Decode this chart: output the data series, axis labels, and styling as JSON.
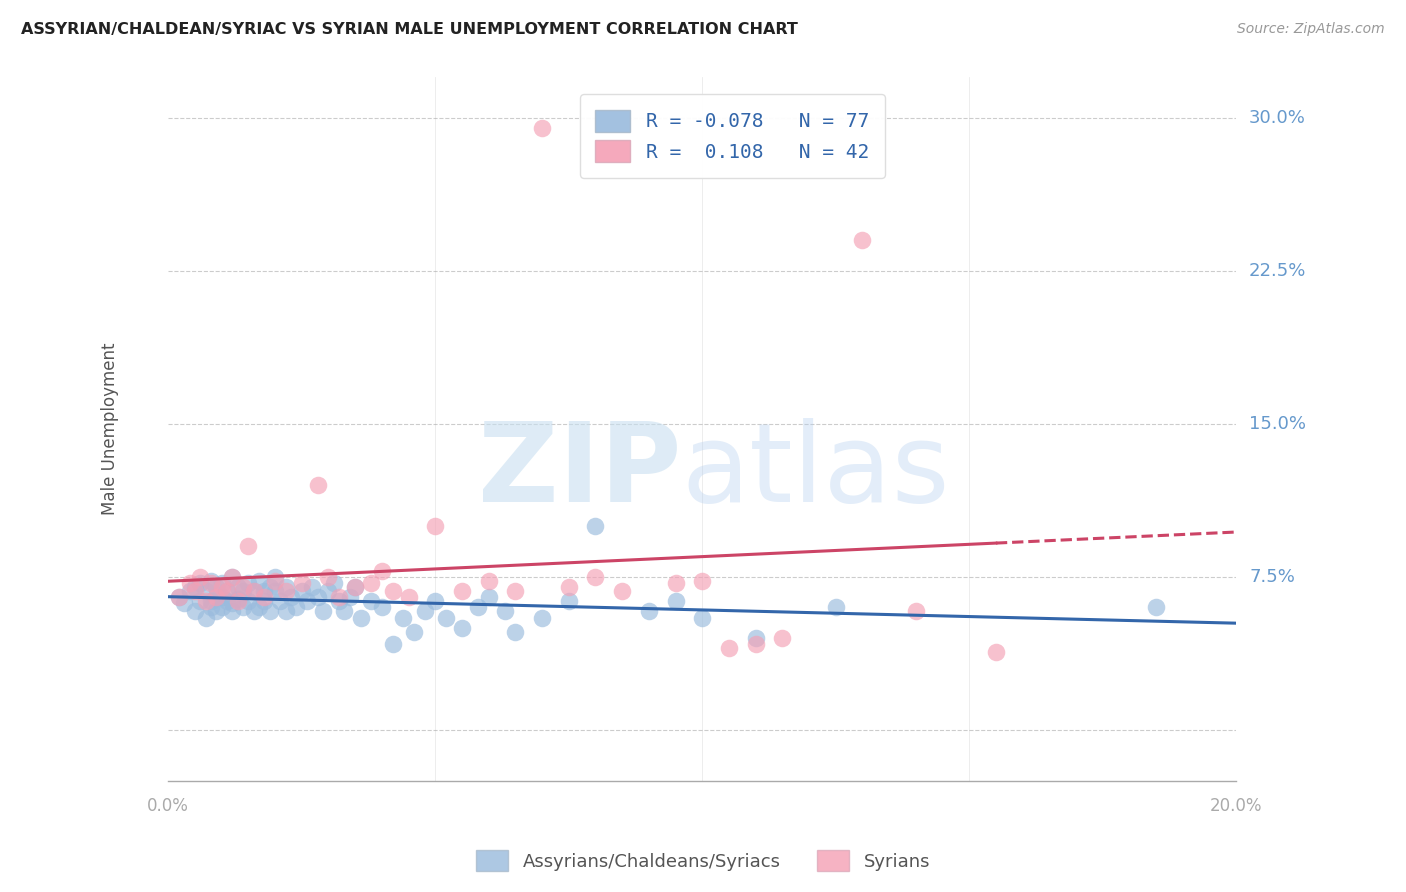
{
  "title": "ASSYRIAN/CHALDEAN/SYRIAC VS SYRIAN MALE UNEMPLOYMENT CORRELATION CHART",
  "source": "Source: ZipAtlas.com",
  "ylabel": "Male Unemployment",
  "watermark_zip": "ZIP",
  "watermark_atlas": "atlas",
  "legend_entries": [
    {
      "label": "R = -0.078   N = 77",
      "color": "#a8c8e8"
    },
    {
      "label": "R =  0.108   N = 42",
      "color": "#f4a0b5"
    }
  ],
  "legend_labels": [
    "Assyrians/Chaldeans/Syriacs",
    "Syrians"
  ],
  "yticks": [
    0.0,
    0.075,
    0.15,
    0.225,
    0.3
  ],
  "ytick_labels": [
    "",
    "7.5%",
    "15.0%",
    "22.5%",
    "30.0%"
  ],
  "xlim": [
    0.0,
    0.2
  ],
  "ylim": [
    -0.025,
    0.32
  ],
  "grid_color": "#cccccc",
  "axis_color": "#aaaaaa",
  "right_label_color": "#6699cc",
  "blue_scatter_color": "#99bbdd",
  "pink_scatter_color": "#f4a0b5",
  "blue_line_color": "#3366aa",
  "pink_line_color": "#cc4466",
  "blue_scatter_alpha": 0.65,
  "pink_scatter_alpha": 0.65,
  "scatter_size": 160,
  "blue_x": [
    0.002,
    0.003,
    0.004,
    0.005,
    0.005,
    0.006,
    0.006,
    0.007,
    0.007,
    0.008,
    0.008,
    0.008,
    0.009,
    0.009,
    0.01,
    0.01,
    0.01,
    0.011,
    0.011,
    0.012,
    0.012,
    0.012,
    0.013,
    0.013,
    0.014,
    0.014,
    0.015,
    0.015,
    0.016,
    0.016,
    0.017,
    0.017,
    0.018,
    0.018,
    0.019,
    0.019,
    0.02,
    0.02,
    0.021,
    0.022,
    0.022,
    0.023,
    0.024,
    0.025,
    0.026,
    0.027,
    0.028,
    0.029,
    0.03,
    0.031,
    0.032,
    0.033,
    0.034,
    0.035,
    0.036,
    0.038,
    0.04,
    0.042,
    0.044,
    0.046,
    0.048,
    0.05,
    0.052,
    0.055,
    0.058,
    0.06,
    0.063,
    0.065,
    0.07,
    0.075,
    0.08,
    0.09,
    0.095,
    0.1,
    0.11,
    0.125,
    0.185
  ],
  "blue_y": [
    0.065,
    0.062,
    0.068,
    0.07,
    0.058,
    0.072,
    0.063,
    0.068,
    0.055,
    0.073,
    0.063,
    0.06,
    0.07,
    0.058,
    0.072,
    0.065,
    0.06,
    0.068,
    0.063,
    0.075,
    0.062,
    0.058,
    0.07,
    0.064,
    0.068,
    0.06,
    0.072,
    0.063,
    0.068,
    0.058,
    0.073,
    0.06,
    0.068,
    0.063,
    0.07,
    0.058,
    0.068,
    0.075,
    0.063,
    0.07,
    0.058,
    0.065,
    0.06,
    0.068,
    0.063,
    0.07,
    0.065,
    0.058,
    0.068,
    0.072,
    0.063,
    0.058,
    0.065,
    0.07,
    0.055,
    0.063,
    0.06,
    0.042,
    0.055,
    0.048,
    0.058,
    0.063,
    0.055,
    0.05,
    0.06,
    0.065,
    0.058,
    0.048,
    0.055,
    0.063,
    0.1,
    0.058,
    0.063,
    0.055,
    0.045,
    0.06,
    0.06
  ],
  "pink_x": [
    0.002,
    0.004,
    0.005,
    0.006,
    0.007,
    0.008,
    0.009,
    0.01,
    0.011,
    0.012,
    0.013,
    0.014,
    0.015,
    0.016,
    0.018,
    0.02,
    0.022,
    0.025,
    0.028,
    0.03,
    0.032,
    0.035,
    0.038,
    0.04,
    0.042,
    0.045,
    0.05,
    0.055,
    0.06,
    0.065,
    0.07,
    0.075,
    0.08,
    0.085,
    0.095,
    0.1,
    0.105,
    0.11,
    0.115,
    0.13,
    0.14,
    0.155
  ],
  "pink_y": [
    0.065,
    0.072,
    0.068,
    0.075,
    0.063,
    0.072,
    0.065,
    0.07,
    0.068,
    0.075,
    0.063,
    0.07,
    0.09,
    0.068,
    0.065,
    0.073,
    0.068,
    0.072,
    0.12,
    0.075,
    0.065,
    0.07,
    0.072,
    0.078,
    0.068,
    0.065,
    0.1,
    0.068,
    0.073,
    0.068,
    0.295,
    0.07,
    0.075,
    0.068,
    0.072,
    0.073,
    0.04,
    0.042,
    0.045,
    0.24,
    0.058,
    0.038
  ]
}
